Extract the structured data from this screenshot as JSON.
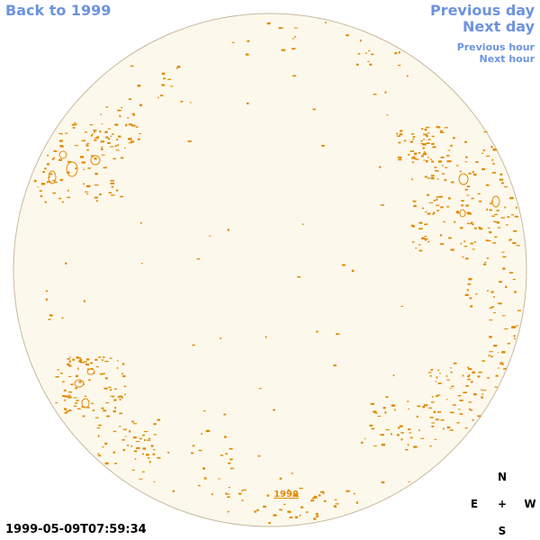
{
  "nav": {
    "back_label": "Back to 1999",
    "previous_day_label": "Previous day",
    "next_day_label": "Next day",
    "previous_hour_label": "Previous hour",
    "next_hour_label": "Next hour"
  },
  "map": {
    "year_label": "1999",
    "timestamp": "1999-05-09T07:59:34",
    "disk_fill_color": "#fdf8ec",
    "disk_edge_color": "#c8b9a0",
    "contour_color": "#e08a00",
    "link_color": "#6d93e0"
  },
  "compass": {
    "north": "N",
    "east": "E",
    "center": "+",
    "west": "W",
    "south": "S"
  }
}
